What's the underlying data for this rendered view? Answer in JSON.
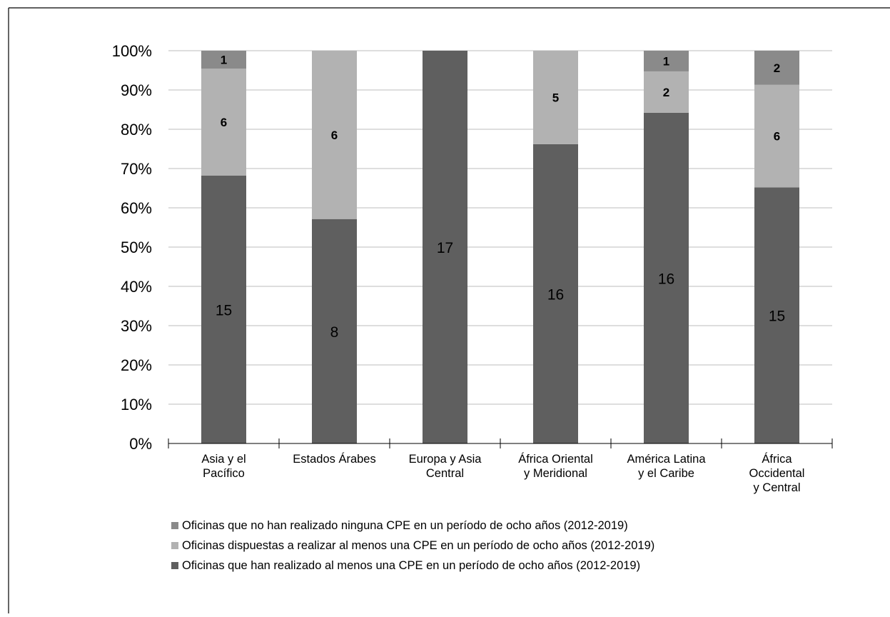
{
  "chart_data": {
    "type": "bar",
    "stacked": true,
    "normalized": true,
    "title": "",
    "xlabel": "",
    "ylabel": "",
    "ylim": [
      0,
      100
    ],
    "yticks": [
      "0%",
      "10%",
      "20%",
      "30%",
      "40%",
      "50%",
      "60%",
      "70%",
      "80%",
      "90%",
      "100%"
    ],
    "grid": true,
    "legend_position": "bottom",
    "categories": [
      [
        "Asia y el",
        "Pacífico"
      ],
      [
        "Estados Árabes"
      ],
      [
        "Europa y Asia",
        "Central"
      ],
      [
        "África Oriental",
        "y Meridional"
      ],
      [
        "América Latina",
        "y el Caribe"
      ],
      [
        "África",
        "Occidental",
        "y Central"
      ]
    ],
    "series": [
      {
        "name": "Oficinas que han realizado al menos una CPE en un período de ocho años (2012-2019)",
        "color": "#5f5f5f",
        "values": [
          15,
          8,
          17,
          16,
          16,
          15
        ],
        "labels": [
          "15",
          "8",
          "17",
          "16",
          "16",
          "15"
        ]
      },
      {
        "name": "Oficinas dispuestas a realizar al menos una CPE en un período de ocho años (2012-2019)",
        "color": "#b2b2b2",
        "values": [
          6,
          6,
          0,
          5,
          2,
          6
        ],
        "labels": [
          "6",
          "6",
          "",
          "5",
          "2",
          "6"
        ]
      },
      {
        "name": "Oficinas que no han realizado ninguna CPE en un período de ocho años (2012-2019)",
        "color": "#8a8a8a",
        "values": [
          1,
          0,
          0,
          0,
          1,
          2
        ],
        "labels": [
          "1",
          "",
          "",
          "",
          "1",
          "2"
        ]
      }
    ],
    "legend_order": [
      2,
      1,
      0
    ]
  }
}
